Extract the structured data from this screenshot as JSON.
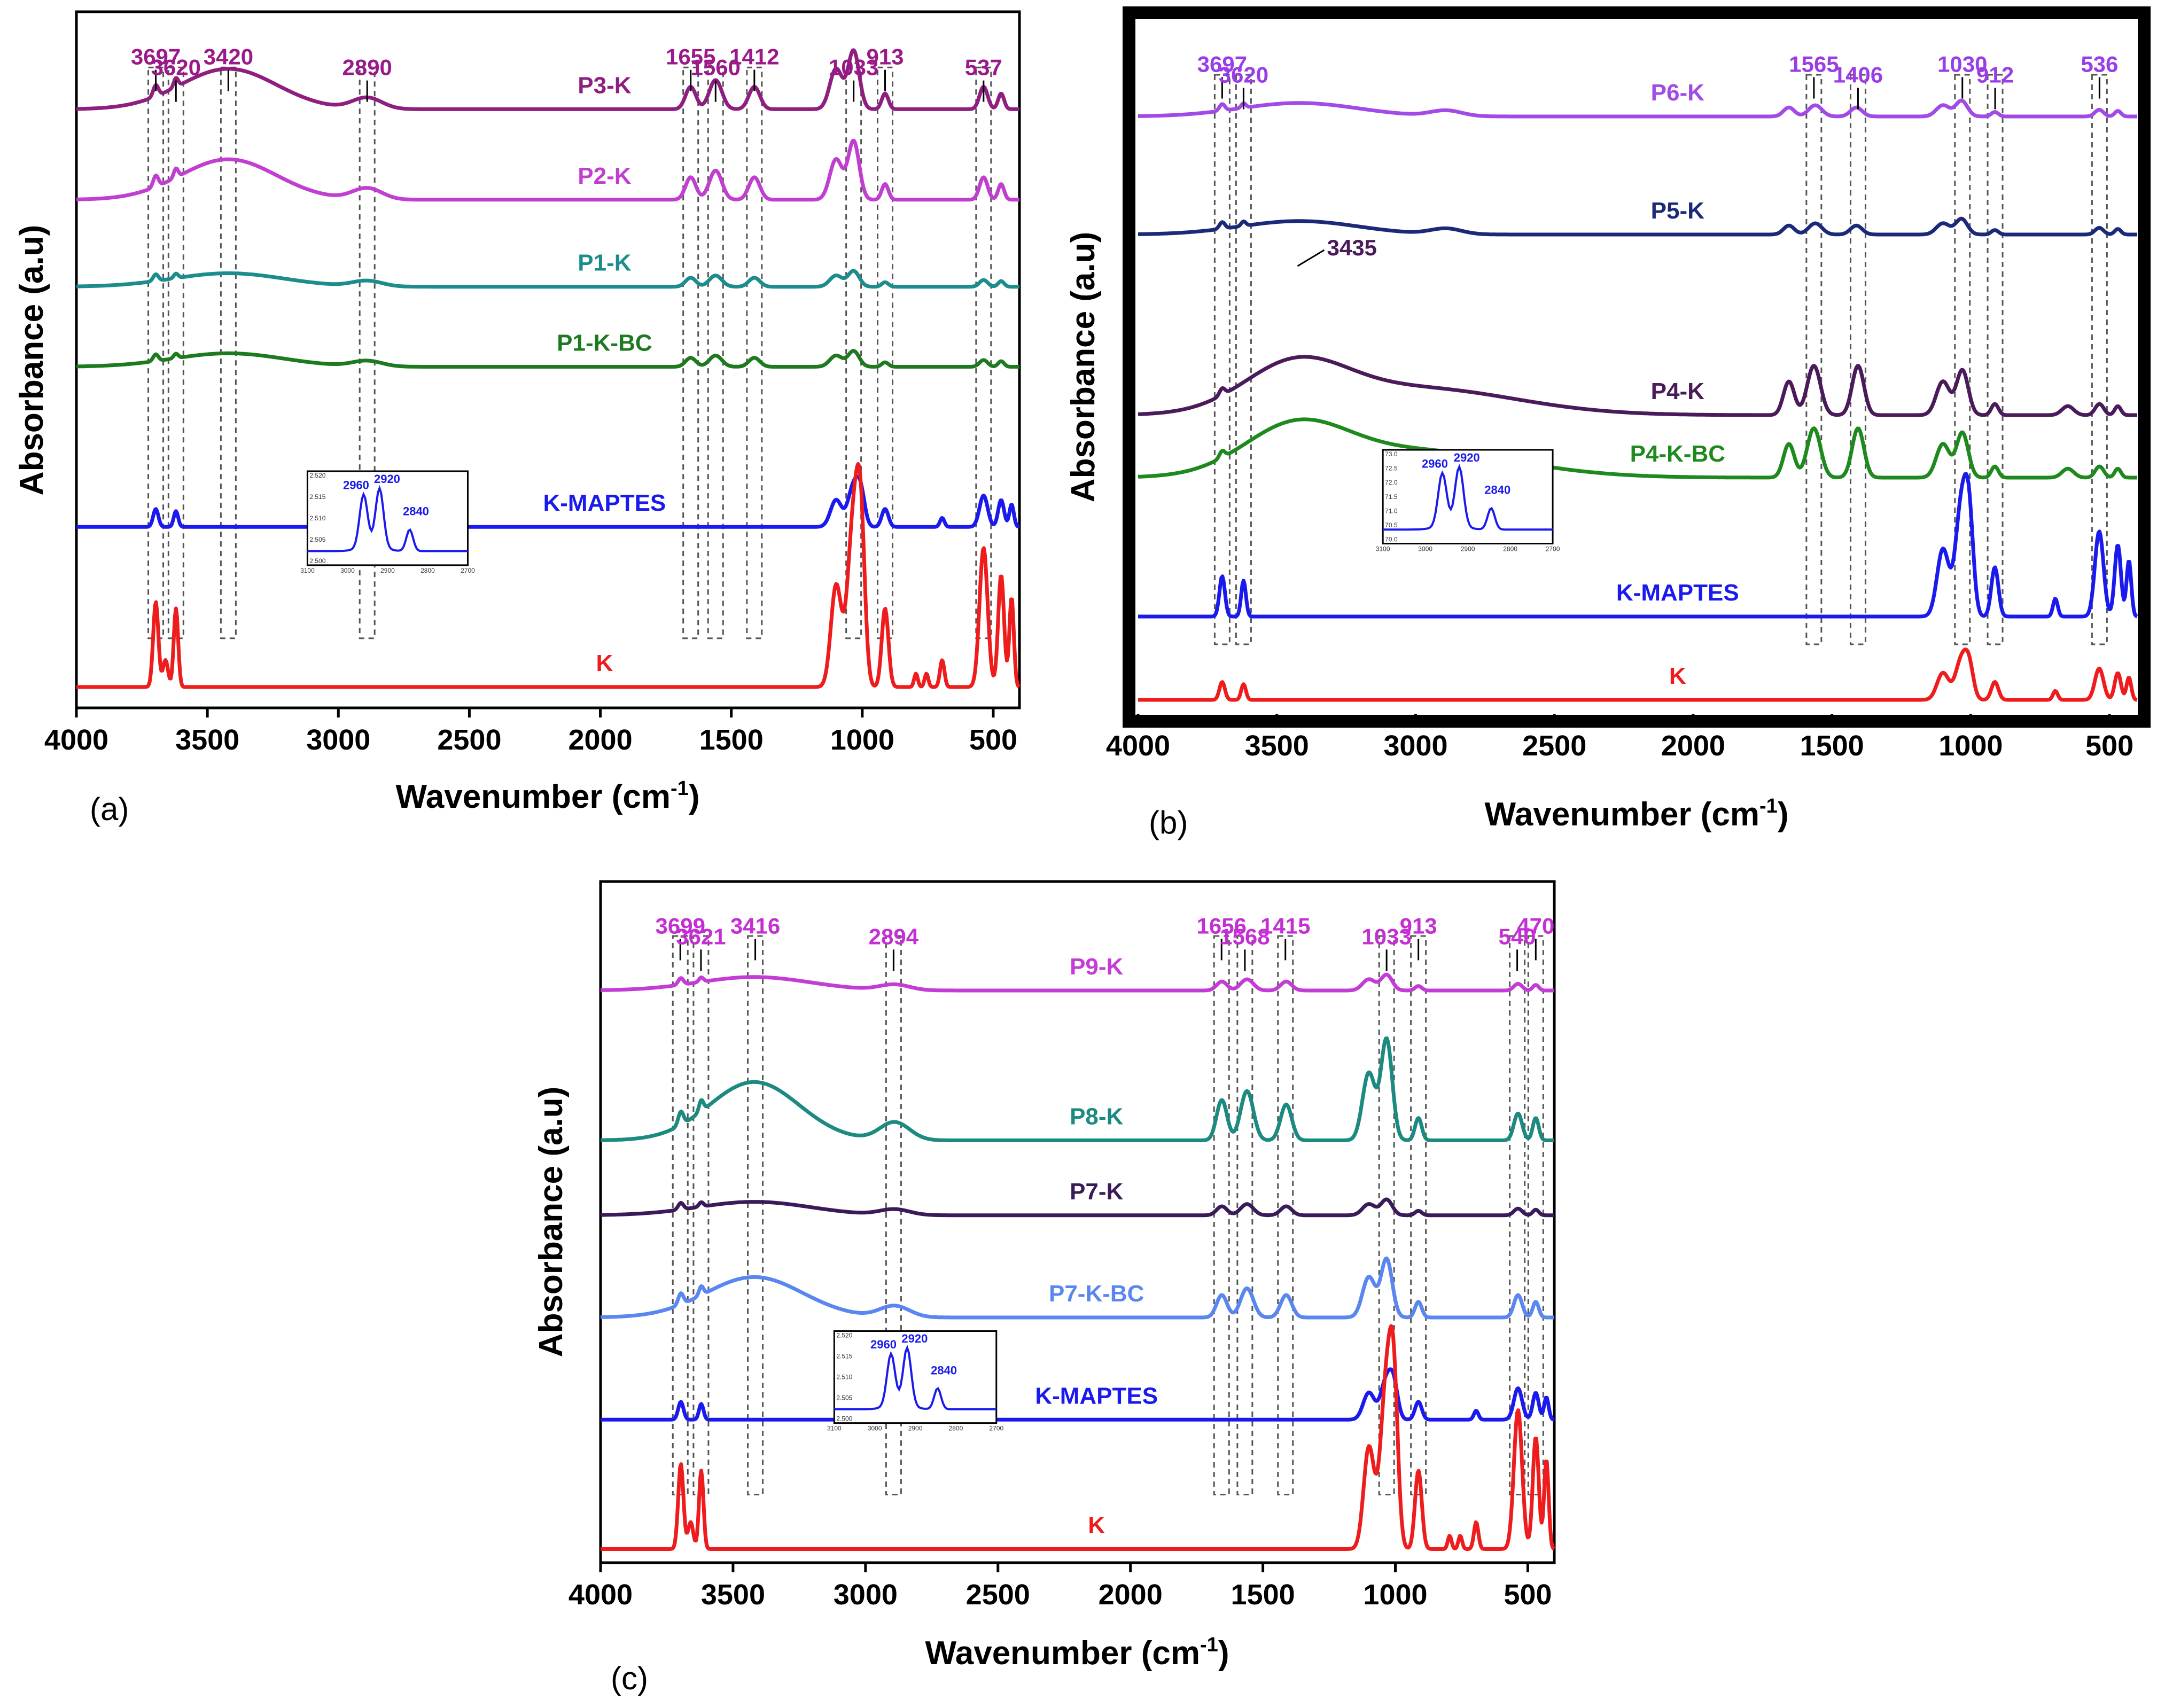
{
  "chart_data": [
    {
      "type": "line",
      "panel_label": "(a)",
      "xlabel": "Wavenumber (cm-1)",
      "ylabel": "Absorbance (a.u)",
      "xlim": [
        4000,
        400
      ],
      "xticks": [
        4000,
        3500,
        3000,
        2500,
        2000,
        1500,
        1000,
        500
      ],
      "peak_labels": [
        3697,
        3620,
        3420,
        2890,
        1655,
        1560,
        1412,
        1033,
        913,
        537
      ],
      "peak_color": "#9a1a8a",
      "series": [
        {
          "name": "P3-K",
          "color": "#8e1f80",
          "offset": 0.86,
          "profile": "full"
        },
        {
          "name": "P2-K",
          "color": "#c13fd0",
          "offset": 0.73,
          "profile": "full"
        },
        {
          "name": "P1-K",
          "color": "#1c8c8c",
          "offset": 0.605,
          "profile": "weak"
        },
        {
          "name": "P1-K-BC",
          "color": "#1e7a1e",
          "offset": 0.49,
          "profile": "weak"
        },
        {
          "name": "K-MAPTES",
          "color": "#1a1aee",
          "offset": 0.26,
          "profile": "kaolin-small"
        },
        {
          "name": "K",
          "color": "#ee1c1c",
          "offset": 0.03,
          "profile": "kaolin"
        }
      ],
      "inset": {
        "peaks": [
          "2960",
          "2920",
          "2840"
        ],
        "color": "#1a1aee",
        "yticks": [
          "2.520",
          "2.515",
          "2.510",
          "2.505",
          "2.500"
        ],
        "xticks": [
          "3100",
          "3000",
          "2900",
          "2800",
          "2700"
        ]
      }
    },
    {
      "type": "line",
      "panel_label": "(b)",
      "xlabel": "Wavenumber (cm-1)",
      "ylabel": "Absorbance (a.u)",
      "xlim": [
        4000,
        400
      ],
      "xticks": [
        4000,
        3500,
        3000,
        2500,
        2000,
        1500,
        1000,
        500
      ],
      "peak_labels": [
        3697,
        3620,
        1565,
        1406,
        1030,
        912,
        536
      ],
      "peak_color": "#9b3de6",
      "extra_peak": {
        "value": 3435,
        "color": "#4a1a5a"
      },
      "series": [
        {
          "name": "P6-K",
          "color": "#a24ae6",
          "offset": 0.86,
          "profile": "weak"
        },
        {
          "name": "P5-K",
          "color": "#1b2a78",
          "offset": 0.69,
          "profile": "weak"
        },
        {
          "name": "P4-K",
          "color": "#4a1a5a",
          "offset": 0.43,
          "profile": "strong"
        },
        {
          "name": "P4-K-BC",
          "color": "#1e8a1e",
          "offset": 0.34,
          "profile": "strong"
        },
        {
          "name": "K-MAPTES",
          "color": "#1a1aee",
          "offset": 0.14,
          "profile": "kaolin-mid"
        },
        {
          "name": "K",
          "color": "#ee1c1c",
          "offset": 0.02,
          "profile": "kaolin-small"
        }
      ],
      "inset": {
        "peaks": [
          "2960",
          "2920",
          "2840"
        ],
        "color": "#1a1aee",
        "yticks": [
          "73.0",
          "72.5",
          "72.0",
          "71.5",
          "71.0",
          "70.5",
          "70.0"
        ],
        "xticks": [
          "3100",
          "3000",
          "2900",
          "2800",
          "2700"
        ]
      }
    },
    {
      "type": "line",
      "panel_label": "(c)",
      "xlabel": "Wavenumber (cm-1)",
      "ylabel": "Absorbance (a.u)",
      "xlim": [
        4000,
        400
      ],
      "xticks": [
        4000,
        3500,
        3000,
        2500,
        2000,
        1500,
        1000,
        500
      ],
      "peak_labels": [
        3699,
        3621,
        3416,
        2894,
        1656,
        1568,
        1415,
        1033,
        913,
        540,
        470
      ],
      "peak_color": "#c42fd3",
      "series": [
        {
          "name": "P9-K",
          "color": "#c43cd6",
          "offset": 0.84,
          "profile": "weak"
        },
        {
          "name": "P8-K",
          "color": "#1c8a80",
          "offset": 0.62,
          "profile": "full-strong"
        },
        {
          "name": "P7-K",
          "color": "#3b1a5a",
          "offset": 0.51,
          "profile": "weak"
        },
        {
          "name": "P7-K-BC",
          "color": "#5a86f0",
          "offset": 0.36,
          "profile": "full"
        },
        {
          "name": "K-MAPTES",
          "color": "#1a1aee",
          "offset": 0.21,
          "profile": "kaolin-small"
        },
        {
          "name": "K",
          "color": "#ee1c1c",
          "offset": 0.02,
          "profile": "kaolin"
        }
      ],
      "inset": {
        "peaks": [
          "2960",
          "2920",
          "2840"
        ],
        "color": "#1a1aee",
        "yticks": [
          "2.520",
          "2.515",
          "2.510",
          "2.505",
          "2.500"
        ],
        "xticks": [
          "3100",
          "3000",
          "2900",
          "2800",
          "2700"
        ]
      }
    }
  ]
}
